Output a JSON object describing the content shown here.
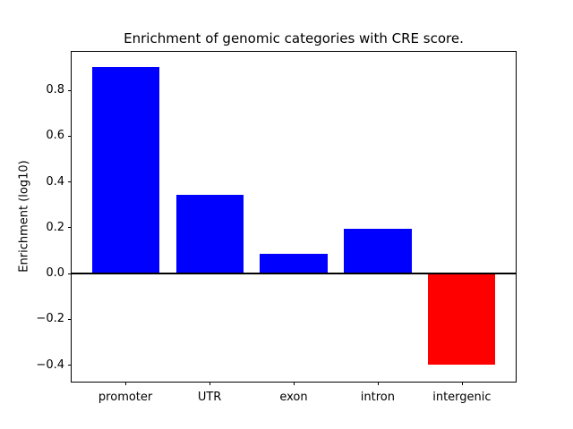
{
  "chart_data": {
    "type": "bar",
    "title": "Enrichment of genomic categories with CRE score.",
    "xlabel": "",
    "ylabel": "Enrichment (log10)",
    "categories": [
      "promoter",
      "UTR",
      "exon",
      "intron",
      "intergenic"
    ],
    "values": [
      0.9,
      0.34,
      0.085,
      0.195,
      -0.4
    ],
    "bar_colors": [
      "#0000ff",
      "#0000ff",
      "#0000ff",
      "#0000ff",
      "#ff0000"
    ],
    "positive_color": "#0000ff",
    "negative_color": "#ff0000",
    "yticks": [
      0.8,
      0.6,
      0.4,
      0.2,
      0.0,
      -0.2,
      -0.4
    ],
    "ylim": [
      -0.474,
      0.966
    ],
    "xlim": [
      -0.64,
      4.64
    ],
    "bar_width": 0.8,
    "zero_line": {
      "y": 0.0,
      "color": "#000000"
    },
    "grid": false,
    "legend": false,
    "background_color": "#ffffff",
    "axis_color": "#000000"
  }
}
